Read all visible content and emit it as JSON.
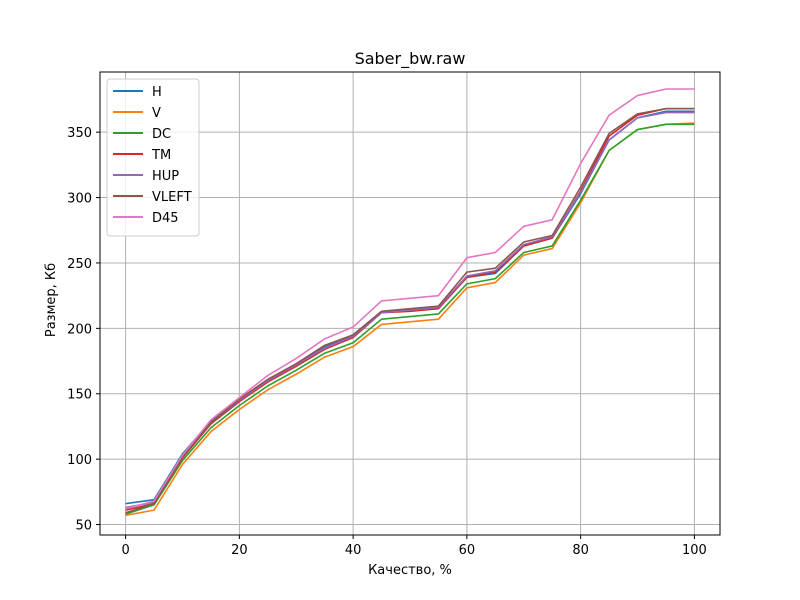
{
  "chart_data": {
    "type": "line",
    "title": "Saber_bw.raw",
    "xlabel": "Качество, %",
    "ylabel": "Размер, Кб",
    "xlim": [
      -4.5,
      104.5
    ],
    "ylim": [
      42,
      396
    ],
    "xticks": [
      0,
      20,
      40,
      60,
      80,
      100
    ],
    "yticks": [
      50,
      100,
      150,
      200,
      250,
      300,
      350
    ],
    "grid": true,
    "legend_position": "top-left",
    "x": [
      0,
      5,
      10,
      15,
      20,
      25,
      30,
      35,
      40,
      45,
      50,
      55,
      60,
      65,
      70,
      75,
      80,
      85,
      90,
      95,
      100
    ],
    "series": [
      {
        "name": "H",
        "color": "#1f77b4",
        "values": [
          66,
          69,
          104,
          129,
          145,
          160,
          172,
          186,
          195,
          213,
          214,
          216,
          239,
          242,
          263,
          269,
          303,
          344,
          361,
          366,
          366
        ]
      },
      {
        "name": "V",
        "color": "#ff7f0e",
        "values": [
          57,
          61,
          96,
          121,
          138,
          153,
          165,
          178,
          186,
          203,
          205,
          207,
          231,
          235,
          256,
          261,
          296,
          336,
          352,
          356,
          357
        ]
      },
      {
        "name": "DC",
        "color": "#2ca02c",
        "values": [
          58,
          65,
          99,
          124,
          141,
          156,
          168,
          181,
          189,
          207,
          209,
          211,
          234,
          238,
          258,
          263,
          298,
          336,
          352,
          356,
          356
        ]
      },
      {
        "name": "TM",
        "color": "#d62728",
        "values": [
          61,
          66,
          101,
          127,
          144,
          159,
          171,
          184,
          193,
          212,
          213,
          215,
          239,
          243,
          263,
          269,
          305,
          347,
          363,
          368,
          368
        ]
      },
      {
        "name": "HUP",
        "color": "#9467bd",
        "values": [
          63,
          67,
          102,
          128,
          145,
          160,
          172,
          185,
          194,
          212,
          214,
          216,
          240,
          244,
          264,
          270,
          304,
          344,
          361,
          365,
          365
        ]
      },
      {
        "name": "VLEFT",
        "color": "#8c564b",
        "values": [
          59,
          66,
          102,
          128,
          146,
          161,
          173,
          187,
          195,
          213,
          215,
          217,
          243,
          246,
          266,
          271,
          308,
          349,
          364,
          368,
          368
        ]
      },
      {
        "name": "D45",
        "color": "#e377c2",
        "values": [
          62,
          68,
          103,
          130,
          147,
          164,
          177,
          192,
          201,
          221,
          223,
          225,
          254,
          258,
          278,
          283,
          326,
          363,
          378,
          383,
          383
        ]
      }
    ]
  }
}
